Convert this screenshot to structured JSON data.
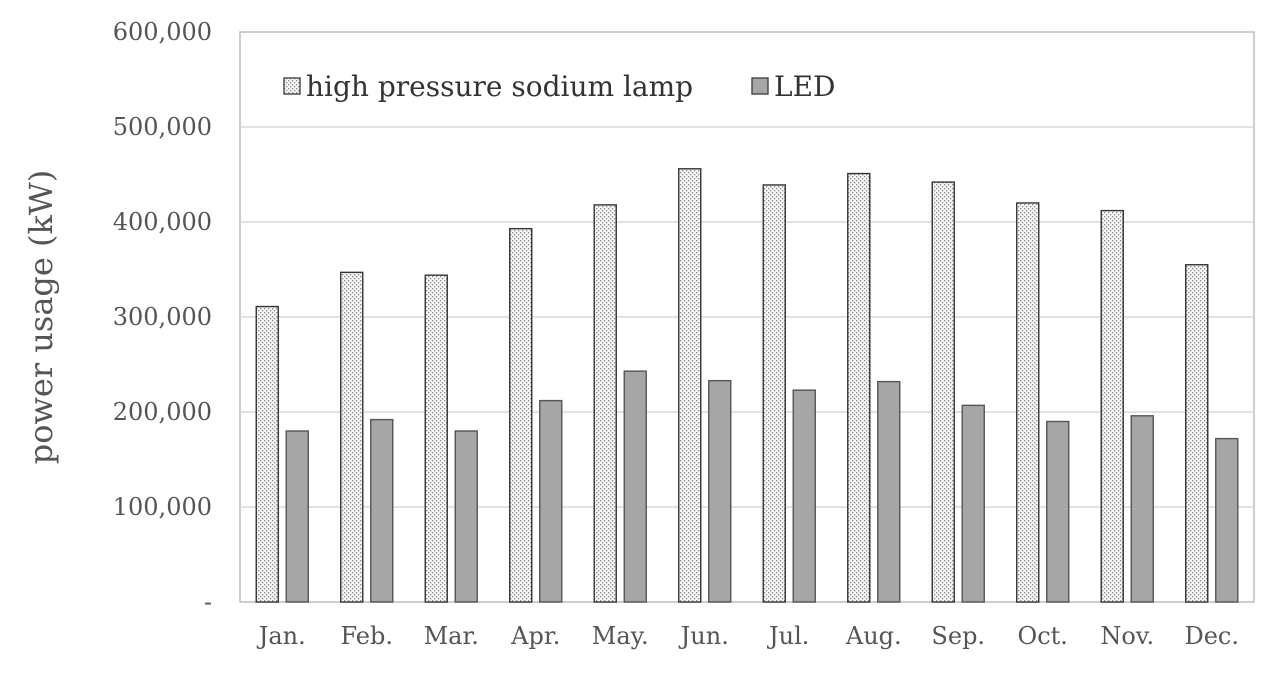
{
  "chart_data": {
    "type": "bar",
    "title": "",
    "xlabel": "",
    "ylabel": "power usage (kW)",
    "ylim": [
      0,
      600000
    ],
    "yticks": [
      0,
      100000,
      200000,
      300000,
      400000,
      500000,
      600000
    ],
    "ytick_labels": [
      "-",
      "100,000",
      "200,000",
      "300,000",
      "400,000",
      "500,000",
      "600,000"
    ],
    "categories": [
      "Jan.",
      "Feb.",
      "Mar.",
      "Apr.",
      "May.",
      "Jun.",
      "Jul.",
      "Aug.",
      "Sep.",
      "Oct.",
      "Nov.",
      "Dec."
    ],
    "series": [
      {
        "name": "high pressure sodium lamp",
        "values": [
          311000,
          347000,
          344000,
          393000,
          418000,
          456000,
          439000,
          451000,
          442000,
          420000,
          412000,
          355000
        ],
        "style": "dotted",
        "color": "#f4f4f4"
      },
      {
        "name": "LED",
        "values": [
          180000,
          192000,
          180000,
          212000,
          243000,
          233000,
          223000,
          232000,
          207000,
          190000,
          196000,
          172000
        ],
        "style": "solid",
        "color": "#a6a6a6"
      }
    ],
    "grid": true,
    "legend_position": "top-left"
  }
}
